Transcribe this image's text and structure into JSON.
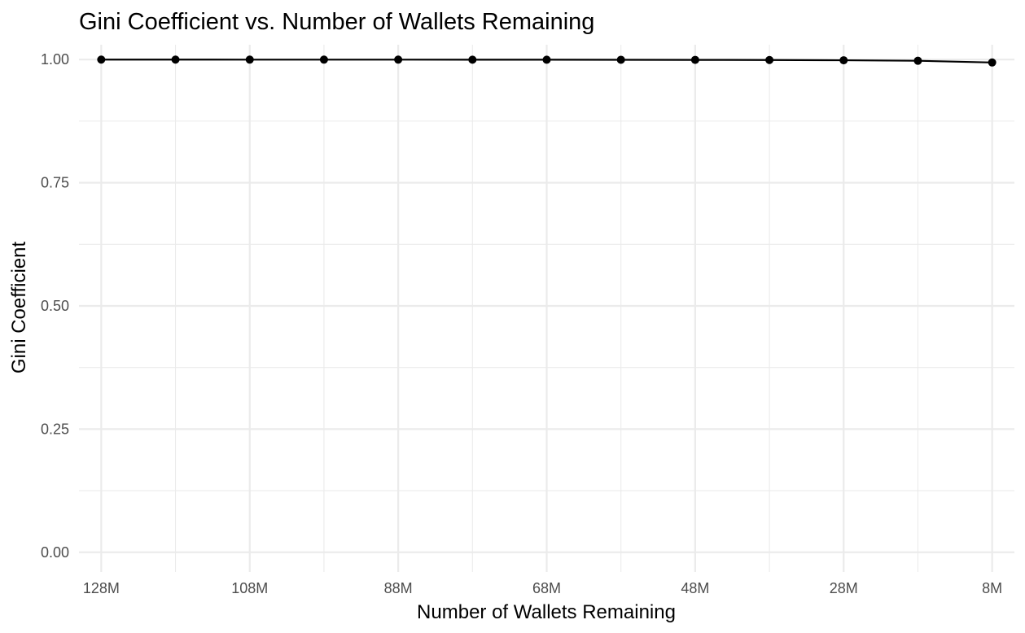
{
  "chart_data": {
    "type": "line",
    "title": "Gini Coefficient vs. Number of Wallets Remaining",
    "xlabel": "Number of Wallets Remaining",
    "ylabel": "Gini Coefficient",
    "x_reversed": true,
    "xlim": [
      131,
      5
    ],
    "ylim": [
      -0.04,
      1.03
    ],
    "x_unit": "M",
    "x_ticks": [
      128,
      108,
      88,
      68,
      48,
      28,
      8
    ],
    "x_tick_labels": [
      "128M",
      "108M",
      "88M",
      "68M",
      "48M",
      "28M",
      "8M"
    ],
    "x_minor_ticks": [
      118,
      98,
      78,
      58,
      38,
      18
    ],
    "y_ticks": [
      0,
      0.25,
      0.5,
      0.75,
      1.0
    ],
    "y_tick_labels": [
      "0.00",
      "0.25",
      "0.50",
      "0.75",
      "1.00"
    ],
    "y_minor_ticks": [
      0.125,
      0.375,
      0.625,
      0.875
    ],
    "grid": true,
    "legend": "none",
    "series": [
      {
        "x": [
          128,
          118,
          108,
          98,
          88,
          78,
          68,
          58,
          48,
          38,
          28,
          18,
          8
        ],
        "values": [
          0.9999,
          0.9999,
          0.9998,
          0.9998,
          0.9998,
          0.9997,
          0.9996,
          0.9995,
          0.9993,
          0.999,
          0.9985,
          0.9975,
          0.994
        ],
        "color": "#000000"
      }
    ]
  }
}
